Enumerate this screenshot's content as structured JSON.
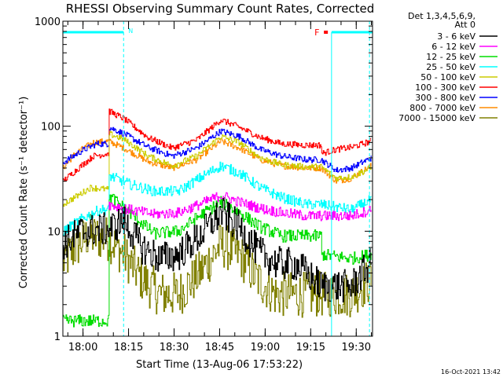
{
  "chart_data": {
    "type": "line",
    "title": "RHESSI Observing Summary Count Rates, Corrected",
    "ylabel": "Corrected Count Rate (s⁻¹ detector⁻¹)",
    "xlabel": "Start Time (13-Aug-06 17:53:22)",
    "yscale": "log",
    "ylim": [
      1,
      1000
    ],
    "xlim_minutes": [
      0,
      102
    ],
    "x_unit": "minutes after 17:53:22",
    "y_ticks": [
      {
        "value": 1,
        "label": "1"
      },
      {
        "value": 10,
        "label": "10"
      },
      {
        "value": 100,
        "label": "100"
      },
      {
        "value": 1000,
        "label": "1000"
      }
    ],
    "x_ticks": [
      {
        "min": 6.63,
        "label": "18:00"
      },
      {
        "min": 21.63,
        "label": "18:15"
      },
      {
        "min": 36.63,
        "label": "18:30"
      },
      {
        "min": 51.63,
        "label": "18:45"
      },
      {
        "min": 66.63,
        "label": "19:00"
      },
      {
        "min": 81.63,
        "label": "19:15"
      },
      {
        "min": 96.63,
        "label": "19:30"
      }
    ],
    "legend_header": [
      "Det 1,3,4,5,6,9,",
      "Att 0"
    ],
    "legend_position": "right",
    "series": [
      {
        "name": "3 - 6 keV",
        "color": "#000000",
        "noise": 0.16,
        "points": [
          [
            0,
            7.5
          ],
          [
            6,
            10
          ],
          [
            15,
            10.5
          ],
          [
            20,
            12.5
          ],
          [
            26,
            7
          ],
          [
            32,
            5.5
          ],
          [
            38,
            6
          ],
          [
            45,
            9
          ],
          [
            52,
            15
          ],
          [
            58,
            11
          ],
          [
            64,
            6.5
          ],
          [
            70,
            5
          ],
          [
            77,
            4.8
          ],
          [
            85,
            3
          ],
          [
            95,
            3
          ],
          [
            101.5,
            5
          ]
        ]
      },
      {
        "name": "6 - 12 keV",
        "color": "#ff00ff",
        "noise": 0.05,
        "points": [
          [
            15,
            18
          ],
          [
            22,
            16
          ],
          [
            30,
            14.5
          ],
          [
            38,
            15
          ],
          [
            45,
            18
          ],
          [
            52,
            22
          ],
          [
            58,
            19
          ],
          [
            65,
            16.5
          ],
          [
            72,
            15
          ],
          [
            80,
            14
          ],
          [
            85,
            14
          ],
          [
            95,
            14
          ],
          [
            101.5,
            16
          ]
        ]
      },
      {
        "name": "12 - 25 keV",
        "color": "#00dd00",
        "noise": 0.06,
        "points": [
          [
            0,
            1.4
          ],
          [
            15,
            1.4
          ],
          [
            15,
            22
          ],
          [
            22,
            15
          ],
          [
            30,
            9.5
          ],
          [
            38,
            10
          ],
          [
            45,
            14
          ],
          [
            52,
            19
          ],
          [
            58,
            15
          ],
          [
            65,
            11
          ],
          [
            72,
            9
          ],
          [
            80,
            9
          ],
          [
            85,
            9
          ],
          [
            85.2,
            6
          ],
          [
            95,
            5.5
          ],
          [
            101.5,
            6
          ]
        ]
      },
      {
        "name": "25 - 50 keV",
        "color": "#00ffff",
        "noise": 0.05,
        "points": [
          [
            0,
            10
          ],
          [
            6,
            13
          ],
          [
            12,
            16
          ],
          [
            15,
            16
          ],
          [
            15,
            34
          ],
          [
            22,
            28
          ],
          [
            30,
            24
          ],
          [
            38,
            24
          ],
          [
            45,
            32
          ],
          [
            52,
            42
          ],
          [
            58,
            36
          ],
          [
            65,
            26
          ],
          [
            72,
            21
          ],
          [
            80,
            18
          ],
          [
            85,
            18
          ],
          [
            95,
            16
          ],
          [
            101.5,
            20
          ]
        ]
      },
      {
        "name": "50 - 100 keV",
        "color": "#cccc00",
        "noise": 0.03,
        "points": [
          [
            0,
            18
          ],
          [
            5,
            22
          ],
          [
            9,
            26
          ],
          [
            15,
            25
          ],
          [
            15,
            85
          ],
          [
            20,
            75
          ],
          [
            28,
            52
          ],
          [
            36,
            42
          ],
          [
            44,
            52
          ],
          [
            52,
            80
          ],
          [
            58,
            70
          ],
          [
            65,
            50
          ],
          [
            72,
            43
          ],
          [
            80,
            41
          ],
          [
            85,
            41
          ],
          [
            90,
            32
          ],
          [
            95,
            33
          ],
          [
            101.5,
            40
          ]
        ]
      },
      {
        "name": "100 - 300 keV",
        "color": "#ff0000",
        "noise": 0.03,
        "points": [
          [
            0,
            30
          ],
          [
            6,
            42
          ],
          [
            10,
            52
          ],
          [
            15,
            55
          ],
          [
            15,
            140
          ],
          [
            20,
            118
          ],
          [
            28,
            78
          ],
          [
            36,
            62
          ],
          [
            44,
            74
          ],
          [
            52,
            115
          ],
          [
            58,
            98
          ],
          [
            65,
            78
          ],
          [
            72,
            68
          ],
          [
            80,
            66
          ],
          [
            85,
            66
          ],
          [
            85.2,
            55
          ],
          [
            90,
            60
          ],
          [
            95,
            63
          ],
          [
            101.5,
            72
          ]
        ]
      },
      {
        "name": "300 - 800 keV",
        "color": "#0000ff",
        "noise": 0.03,
        "points": [
          [
            0,
            45
          ],
          [
            6,
            58
          ],
          [
            11,
            68
          ],
          [
            15,
            68
          ],
          [
            15,
            98
          ],
          [
            20,
            85
          ],
          [
            28,
            63
          ],
          [
            36,
            52
          ],
          [
            44,
            62
          ],
          [
            52,
            90
          ],
          [
            58,
            80
          ],
          [
            65,
            60
          ],
          [
            72,
            52
          ],
          [
            80,
            48
          ],
          [
            85,
            48
          ],
          [
            90,
            38
          ],
          [
            95,
            40
          ],
          [
            101.5,
            50
          ]
        ]
      },
      {
        "name": "800 - 7000 keV",
        "color": "#ff8c00",
        "noise": 0.03,
        "points": [
          [
            0,
            40
          ],
          [
            4,
            55
          ],
          [
            10,
            70
          ],
          [
            15,
            72
          ],
          [
            20,
            62
          ],
          [
            28,
            46
          ],
          [
            36,
            40
          ],
          [
            44,
            48
          ],
          [
            52,
            72
          ],
          [
            58,
            62
          ],
          [
            65,
            48
          ],
          [
            72,
            42
          ],
          [
            80,
            40
          ],
          [
            85,
            40
          ],
          [
            90,
            30
          ],
          [
            95,
            32
          ],
          [
            101.5,
            42
          ]
        ]
      },
      {
        "name": "7000 - 15000 keV",
        "color": "#808000",
        "noise": 0.22,
        "points": [
          [
            0,
            5
          ],
          [
            4,
            7
          ],
          [
            8,
            9
          ],
          [
            15,
            8.5
          ],
          [
            20,
            6
          ],
          [
            26,
            3.5
          ],
          [
            32,
            2.5
          ],
          [
            38,
            2.5
          ],
          [
            45,
            4
          ],
          [
            52,
            7.5
          ],
          [
            58,
            6
          ],
          [
            64,
            3.5
          ],
          [
            70,
            2.5
          ],
          [
            77,
            2.5
          ],
          [
            85,
            2.5
          ],
          [
            95,
            2.5
          ],
          [
            101.5,
            3.5
          ]
        ]
      }
    ],
    "annotations": [
      {
        "label": "N",
        "color": "#00ffff",
        "start_min": 0,
        "end_min": 20
      },
      {
        "label": "F",
        "color": "#ff0000",
        "start_min": 86.5,
        "end_min": 86.8
      }
    ],
    "footer_timestamp": "16-Oct-2021 13:42"
  }
}
